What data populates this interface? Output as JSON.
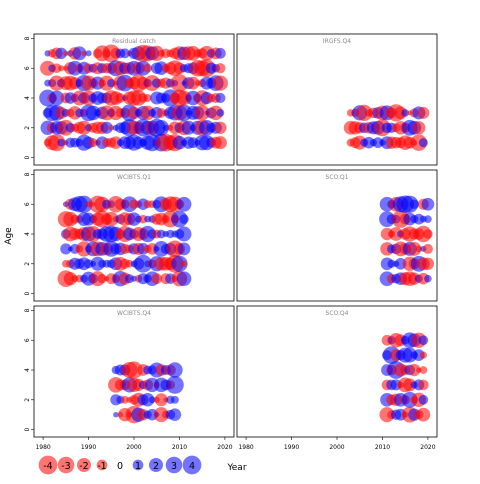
{
  "chart_data": {
    "type": "scatter",
    "subtype": "bubble-residuals",
    "xlabel": "Year",
    "ylabel": "Age",
    "xlim": [
      1978,
      2022
    ],
    "ylim": [
      -0.5,
      8.3
    ],
    "x_ticks": [
      1980,
      1990,
      2000,
      2010,
      2020
    ],
    "y_ticks": [
      0,
      2,
      4,
      6,
      8
    ],
    "colors": {
      "positive": "#0000ff",
      "negative": "#ff0000",
      "bubble_opacity": 0.55
    },
    "panels": [
      {
        "title": "Residual catch",
        "row": 0,
        "col": 0,
        "years": [
          1981,
          2019
        ],
        "ages": [
          1,
          2,
          3,
          4,
          5,
          6,
          7
        ]
      },
      {
        "title": "IRGFS.Q4",
        "row": 0,
        "col": 1,
        "years": [
          2003,
          2019
        ],
        "ages": [
          1,
          2,
          3
        ]
      },
      {
        "title": "WCIBTS.Q1",
        "row": 1,
        "col": 0,
        "years": [
          1985,
          2011
        ],
        "ages": [
          1,
          2,
          3,
          4,
          5,
          6
        ]
      },
      {
        "title": "SCO.Q1",
        "row": 1,
        "col": 1,
        "years": [
          2011,
          2020
        ],
        "ages": [
          1,
          2,
          3,
          4,
          5,
          6
        ]
      },
      {
        "title": "WCIBTS.Q4",
        "row": 2,
        "col": 0,
        "years": [
          1996,
          2009
        ],
        "ages": [
          1,
          2,
          3,
          4
        ]
      },
      {
        "title": "SCO.Q4",
        "row": 2,
        "col": 1,
        "years": [
          2011,
          2019
        ],
        "ages": [
          1,
          2,
          3,
          4,
          5,
          6
        ]
      }
    ],
    "legend": {
      "position": "bottom-left",
      "values": [
        -4,
        -3,
        -2,
        -1,
        0,
        1,
        2,
        3,
        4
      ],
      "labels": [
        "-4",
        "-3",
        "-2",
        "-1",
        "0",
        "1",
        "2",
        "3",
        "4"
      ]
    }
  }
}
